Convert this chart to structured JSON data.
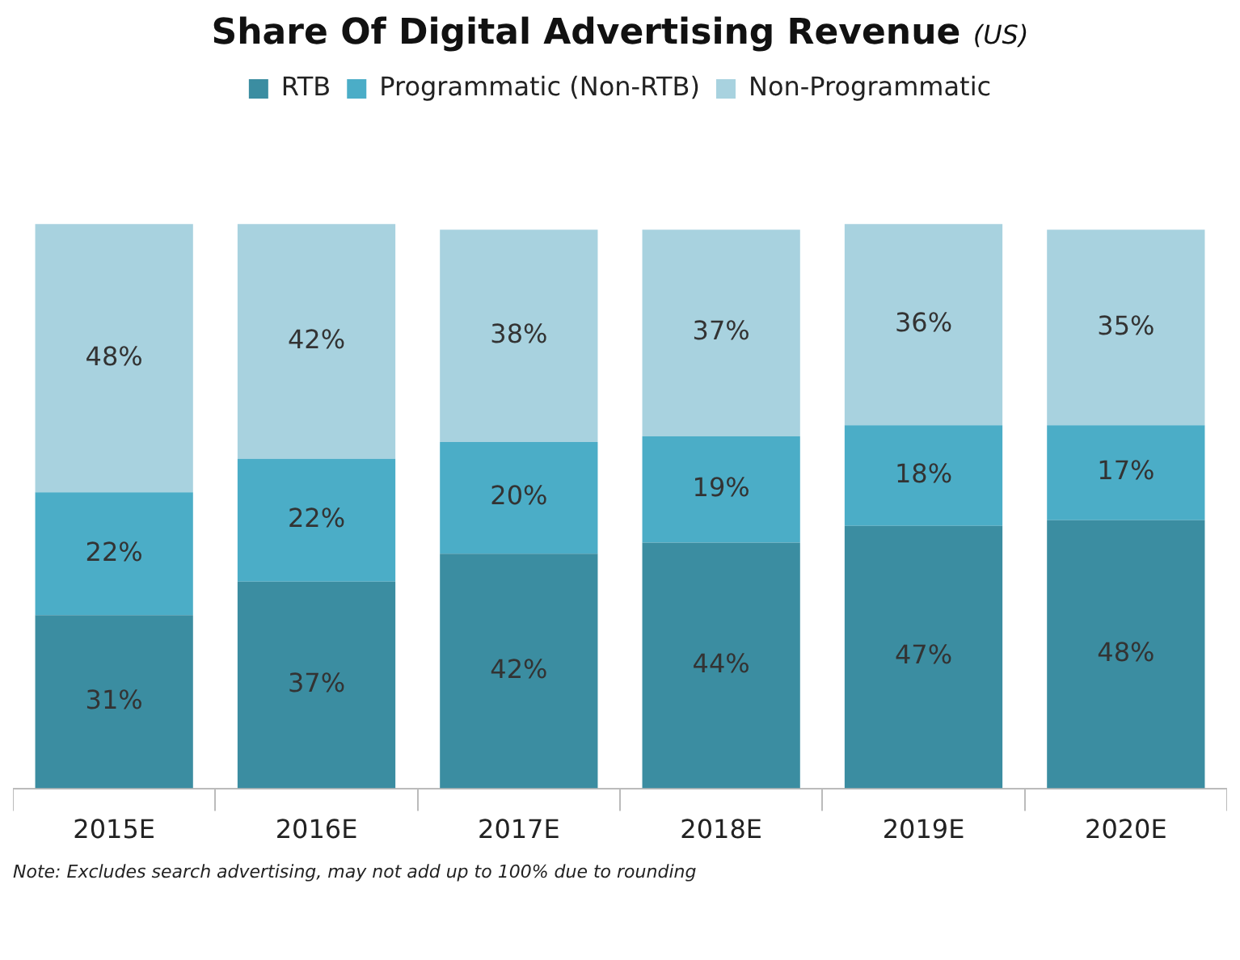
{
  "chart_data": {
    "type": "bar",
    "title": "Share Of Digital Advertising Revenue",
    "subtitle": "(US)",
    "categories": [
      "2015E",
      "2016E",
      "2017E",
      "2018E",
      "2019E",
      "2020E"
    ],
    "stacked": true,
    "legend": "top",
    "data_labels": true,
    "series": [
      {
        "name": "RTB",
        "color": "#3b8da1",
        "values": [
          31,
          37,
          42,
          44,
          47,
          48
        ],
        "value_labels": [
          "31%",
          "37%",
          "42%",
          "44%",
          "47%",
          "48%"
        ]
      },
      {
        "name": "Programmatic (Non-RTB)",
        "color": "#4badc7",
        "values": [
          22,
          22,
          20,
          19,
          18,
          17
        ],
        "value_labels": [
          "22%",
          "22%",
          "20%",
          "19%",
          "18%",
          "17%"
        ]
      },
      {
        "name": "Non-Programmatic",
        "color": "#a8d2df",
        "values": [
          48,
          42,
          38,
          37,
          36,
          35
        ],
        "value_labels": [
          "48%",
          "42%",
          "38%",
          "37%",
          "36%",
          "35%"
        ]
      }
    ],
    "annotations": [
      "Note: Excludes search advertising, may not add up to 100% due to rounding"
    ]
  }
}
